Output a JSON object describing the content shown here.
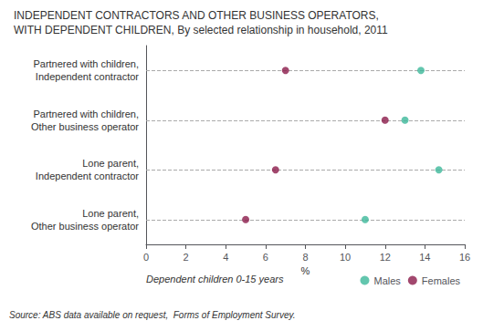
{
  "chart_data": {
    "type": "scatter",
    "orientation": "horizontal",
    "title": "INDEPENDENT CONTRACTORS AND OTHER BUSINESS OPERATORS,",
    "subtitle": "WITH DEPENDENT CHILDREN, By selected relationship in household, 2011",
    "categories": [
      "Partnered with children,\nIndependent contractor",
      "Partnered with children,\nOther business operator",
      "Lone parent,\nIndependent contractor",
      "Lone parent,\nOther business operator"
    ],
    "series": [
      {
        "name": "Males",
        "color": "#3cb89a",
        "values": [
          13.8,
          13.0,
          14.7,
          11.0
        ]
      },
      {
        "name": "Females",
        "color": "#8b1a4a",
        "values": [
          7.0,
          12.0,
          6.5,
          5.0
        ]
      }
    ],
    "xlabel": "%",
    "xlim": [
      0,
      16
    ],
    "xticks": [
      0,
      2,
      4,
      6,
      8,
      10,
      12,
      14,
      16
    ],
    "grid": true,
    "legend": "lower right",
    "annotations": [
      "Dependent children 0-15 years",
      "Source: ABS data available on request,  Forms of Employment Survey."
    ]
  }
}
